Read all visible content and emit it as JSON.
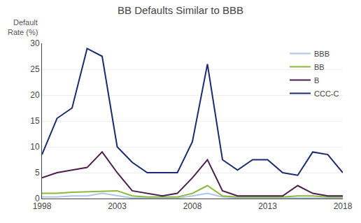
{
  "chart_data": {
    "type": "line",
    "title": "BB Defaults Similar to BBB",
    "annotations": [
      "Default",
      "Rate (%)"
    ],
    "x": [
      1998,
      1999,
      2000,
      2001,
      2002,
      2003,
      2004,
      2005,
      2006,
      2007,
      2008,
      2009,
      2010,
      2011,
      2012,
      2013,
      2014,
      2015,
      2016,
      2017,
      2018
    ],
    "series": [
      {
        "name": "BBB",
        "color": "#aec6e8",
        "values": [
          0.3,
          0.3,
          0.5,
          0.5,
          1.0,
          0.5,
          0.1,
          0.1,
          0.1,
          0.1,
          0.5,
          1.0,
          0.3,
          0.1,
          0.1,
          0.1,
          0.1,
          0.1,
          0.1,
          0.1,
          0.1
        ]
      },
      {
        "name": "BB",
        "color": "#8db83a",
        "values": [
          1.0,
          1.0,
          1.2,
          1.3,
          1.5,
          1.5,
          0.5,
          0.3,
          0.3,
          0.3,
          1.0,
          2.5,
          0.5,
          0.3,
          0.3,
          0.3,
          0.3,
          0.5,
          0.5,
          0.3,
          0.3
        ]
      },
      {
        "name": "B",
        "color": "#4b1f4e",
        "values": [
          4.0,
          5.0,
          5.5,
          6.0,
          9.0,
          5.0,
          1.5,
          1.0,
          0.5,
          1.0,
          4.0,
          7.5,
          1.5,
          0.5,
          0.5,
          0.5,
          0.5,
          2.5,
          1.0,
          0.5,
          0.5
        ]
      },
      {
        "name": "CCC-C",
        "color": "#1a2b6e",
        "values": [
          8.5,
          15.5,
          17.5,
          29.0,
          27.5,
          10.0,
          7.0,
          5.0,
          5.0,
          5.0,
          11.0,
          26.0,
          7.5,
          5.5,
          7.5,
          7.5,
          5.0,
          4.5,
          9.0,
          8.5,
          5.0
        ]
      }
    ],
    "xlim": [
      1998,
      2018
    ],
    "xticks": [
      1998,
      2003,
      2008,
      2013,
      2018
    ],
    "ylim": [
      0,
      30
    ],
    "yticks": [
      0,
      5,
      10,
      15,
      20,
      25,
      30
    ],
    "grid": true,
    "legend": "upper right"
  }
}
